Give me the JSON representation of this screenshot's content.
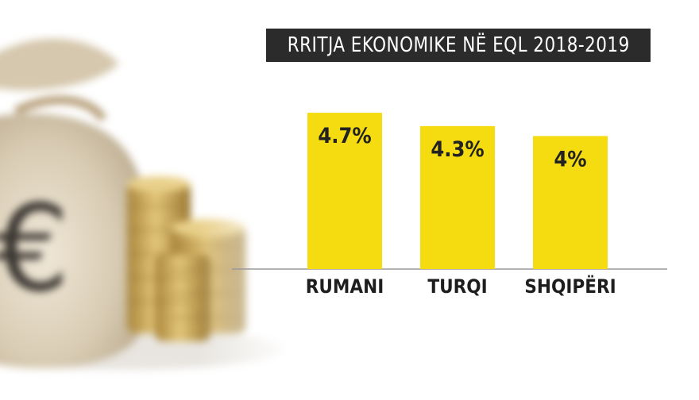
{
  "chart_data": {
    "type": "bar",
    "title": "RRITJA EKONOMIKE NË EQL 2018-2019",
    "categories": [
      "RUMANI",
      "TURQI",
      "SHQIPËRI"
    ],
    "values": [
      4.7,
      4.3,
      4
    ],
    "value_labels": [
      "4.7%",
      "4.3%",
      "4%"
    ],
    "unit": "%",
    "ylim": [
      0,
      5.8
    ],
    "grid": false,
    "legend": "none",
    "xlabel": "",
    "ylabel": ""
  },
  "colors": {
    "bar": "#f5dc10",
    "title_bg": "#2b2b2b",
    "title_text": "#ffffff",
    "baseline": "#9a9a9a",
    "background": "#ffffff"
  },
  "background": {
    "image_subject": "money-bag-and-coins",
    "bag_symbol": "€"
  }
}
